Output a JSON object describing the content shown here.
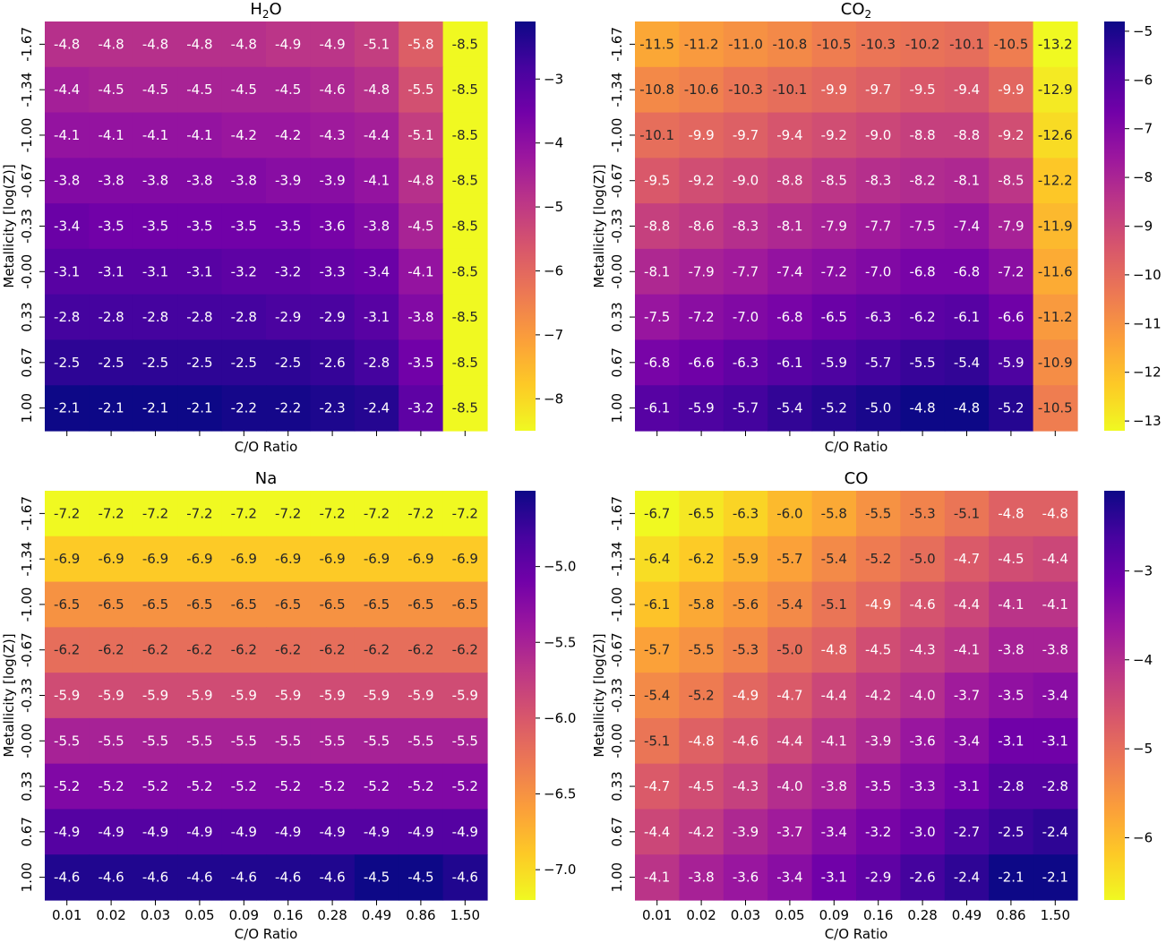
{
  "figure": {
    "shared": {
      "xlabel": "C/O Ratio",
      "ylabel": "Metallicity [log(Z)]",
      "x_ticks": [
        "0.01",
        "0.02",
        "0.03",
        "0.05",
        "0.09",
        "0.16",
        "0.28",
        "0.49",
        "0.86",
        "1.50"
      ],
      "y_ticks": [
        "-1.67",
        "-1.34",
        "-1.00",
        "-0.67",
        "-0.33",
        "-0.00",
        "0.33",
        "0.67",
        "1.00"
      ],
      "colormap": "plasma (reversed)",
      "colormap_stops": [
        "#0d0887",
        "#46039f",
        "#7201a8",
        "#9c179e",
        "#bd3786",
        "#d8576b",
        "#ed7953",
        "#fb9f3a",
        "#fdca26",
        "#f0f921"
      ]
    }
  },
  "chart_data": [
    {
      "type": "heatmap",
      "title": "H2O",
      "title_main": "H",
      "title_sub": "2",
      "title_tail": "O",
      "xlabel": "C/O Ratio",
      "ylabel": "Metallicity [log(Z)]",
      "show_x_ticklabels": false,
      "show_xlabel": true,
      "show_ylabel": true,
      "color_range": [
        -8.5,
        -2.1
      ],
      "colorbar_ticks": [
        -3,
        -4,
        -5,
        -6,
        -7,
        -8
      ],
      "colorbar_labels": [
        "−3",
        "−4",
        "−5",
        "−6",
        "−7",
        "−8"
      ],
      "values": [
        [
          -4.8,
          -4.8,
          -4.8,
          -4.8,
          -4.8,
          -4.9,
          -4.9,
          -5.1,
          -5.8,
          -8.5
        ],
        [
          -4.4,
          -4.5,
          -4.5,
          -4.5,
          -4.5,
          -4.5,
          -4.6,
          -4.8,
          -5.5,
          -8.5
        ],
        [
          -4.1,
          -4.1,
          -4.1,
          -4.1,
          -4.2,
          -4.2,
          -4.3,
          -4.4,
          -5.1,
          -8.5
        ],
        [
          -3.8,
          -3.8,
          -3.8,
          -3.8,
          -3.8,
          -3.9,
          -3.9,
          -4.1,
          -4.8,
          -8.5
        ],
        [
          -3.4,
          -3.5,
          -3.5,
          -3.5,
          -3.5,
          -3.5,
          -3.6,
          -3.8,
          -4.5,
          -8.5
        ],
        [
          -3.1,
          -3.1,
          -3.1,
          -3.1,
          -3.2,
          -3.2,
          -3.3,
          -3.4,
          -4.1,
          -8.5
        ],
        [
          -2.8,
          -2.8,
          -2.8,
          -2.8,
          -2.8,
          -2.9,
          -2.9,
          -3.1,
          -3.8,
          -8.5
        ],
        [
          -2.5,
          -2.5,
          -2.5,
          -2.5,
          -2.5,
          -2.5,
          -2.6,
          -2.8,
          -3.5,
          -8.5
        ],
        [
          -2.1,
          -2.1,
          -2.1,
          -2.1,
          -2.2,
          -2.2,
          -2.3,
          -2.4,
          -3.2,
          -8.5
        ]
      ]
    },
    {
      "type": "heatmap",
      "title": "CO2",
      "title_main": "CO",
      "title_sub": "2",
      "title_tail": "",
      "xlabel": "C/O Ratio",
      "ylabel": "Metallicity [log(Z)]",
      "show_x_ticklabels": false,
      "show_xlabel": true,
      "show_ylabel": true,
      "color_range": [
        -13.2,
        -4.8
      ],
      "colorbar_ticks": [
        -5,
        -6,
        -7,
        -8,
        -9,
        -10,
        -11,
        -12,
        -13
      ],
      "colorbar_labels": [
        "−5",
        "−6",
        "−7",
        "−8",
        "−9",
        "−10",
        "−11",
        "−12",
        "−13"
      ],
      "values": [
        [
          -11.5,
          -11.2,
          -11.0,
          -10.8,
          -10.5,
          -10.3,
          -10.2,
          -10.1,
          -10.5,
          -13.2
        ],
        [
          -10.8,
          -10.6,
          -10.3,
          -10.1,
          -9.9,
          -9.7,
          -9.5,
          -9.4,
          -9.9,
          -12.9
        ],
        [
          -10.1,
          -9.9,
          -9.7,
          -9.4,
          -9.2,
          -9.0,
          -8.8,
          -8.8,
          -9.2,
          -12.6
        ],
        [
          -9.5,
          -9.2,
          -9.0,
          -8.8,
          -8.5,
          -8.3,
          -8.2,
          -8.1,
          -8.5,
          -12.2
        ],
        [
          -8.8,
          -8.6,
          -8.3,
          -8.1,
          -7.9,
          -7.7,
          -7.5,
          -7.4,
          -7.9,
          -11.9
        ],
        [
          -8.1,
          -7.9,
          -7.7,
          -7.4,
          -7.2,
          -7.0,
          -6.8,
          -6.8,
          -7.2,
          -11.6
        ],
        [
          -7.5,
          -7.2,
          -7.0,
          -6.8,
          -6.5,
          -6.3,
          -6.2,
          -6.1,
          -6.6,
          -11.2
        ],
        [
          -6.8,
          -6.6,
          -6.3,
          -6.1,
          -5.9,
          -5.7,
          -5.5,
          -5.4,
          -5.9,
          -10.9
        ],
        [
          -6.1,
          -5.9,
          -5.7,
          -5.4,
          -5.2,
          -5.0,
          -4.8,
          -4.8,
          -5.2,
          -10.5
        ]
      ]
    },
    {
      "type": "heatmap",
      "title": "Na",
      "title_main": "Na",
      "title_sub": "",
      "title_tail": "",
      "xlabel": "C/O Ratio",
      "ylabel": "Metallicity [log(Z)]",
      "show_x_ticklabels": true,
      "show_xlabel": true,
      "show_ylabel": true,
      "color_range": [
        -7.2,
        -4.5
      ],
      "colorbar_ticks": [
        -5.0,
        -5.5,
        -6.0,
        -6.5,
        -7.0
      ],
      "colorbar_labels": [
        "−5.0",
        "−5.5",
        "−6.0",
        "−6.5",
        "−7.0"
      ],
      "values": [
        [
          -7.2,
          -7.2,
          -7.2,
          -7.2,
          -7.2,
          -7.2,
          -7.2,
          -7.2,
          -7.2,
          -7.2
        ],
        [
          -6.9,
          -6.9,
          -6.9,
          -6.9,
          -6.9,
          -6.9,
          -6.9,
          -6.9,
          -6.9,
          -6.9
        ],
        [
          -6.5,
          -6.5,
          -6.5,
          -6.5,
          -6.5,
          -6.5,
          -6.5,
          -6.5,
          -6.5,
          -6.5
        ],
        [
          -6.2,
          -6.2,
          -6.2,
          -6.2,
          -6.2,
          -6.2,
          -6.2,
          -6.2,
          -6.2,
          -6.2
        ],
        [
          -5.9,
          -5.9,
          -5.9,
          -5.9,
          -5.9,
          -5.9,
          -5.9,
          -5.9,
          -5.9,
          -5.9
        ],
        [
          -5.5,
          -5.5,
          -5.5,
          -5.5,
          -5.5,
          -5.5,
          -5.5,
          -5.5,
          -5.5,
          -5.5
        ],
        [
          -5.2,
          -5.2,
          -5.2,
          -5.2,
          -5.2,
          -5.2,
          -5.2,
          -5.2,
          -5.2,
          -5.2
        ],
        [
          -4.9,
          -4.9,
          -4.9,
          -4.9,
          -4.9,
          -4.9,
          -4.9,
          -4.9,
          -4.9,
          -4.9
        ],
        [
          -4.6,
          -4.6,
          -4.6,
          -4.6,
          -4.6,
          -4.6,
          -4.6,
          -4.5,
          -4.5,
          -4.6
        ]
      ]
    },
    {
      "type": "heatmap",
      "title": "CO",
      "title_main": "CO",
      "title_sub": "",
      "title_tail": "",
      "xlabel": "C/O Ratio",
      "ylabel": "Metallicity [log(Z)]",
      "show_x_ticklabels": true,
      "show_xlabel": true,
      "show_ylabel": true,
      "color_range": [
        -6.7,
        -2.1
      ],
      "colorbar_ticks": [
        -3,
        -4,
        -5,
        -6
      ],
      "colorbar_labels": [
        "−3",
        "−4",
        "−5",
        "−6"
      ],
      "values": [
        [
          -6.7,
          -6.5,
          -6.3,
          -6.0,
          -5.8,
          -5.5,
          -5.3,
          -5.1,
          -4.8,
          -4.8
        ],
        [
          -6.4,
          -6.2,
          -5.9,
          -5.7,
          -5.4,
          -5.2,
          -5.0,
          -4.7,
          -4.5,
          -4.4
        ],
        [
          -6.1,
          -5.8,
          -5.6,
          -5.4,
          -5.1,
          -4.9,
          -4.6,
          -4.4,
          -4.1,
          -4.1
        ],
        [
          -5.7,
          -5.5,
          -5.3,
          -5.0,
          -4.8,
          -4.5,
          -4.3,
          -4.1,
          -3.8,
          -3.8
        ],
        [
          -5.4,
          -5.2,
          -4.9,
          -4.7,
          -4.4,
          -4.2,
          -4.0,
          -3.7,
          -3.5,
          -3.4
        ],
        [
          -5.1,
          -4.8,
          -4.6,
          -4.4,
          -4.1,
          -3.9,
          -3.6,
          -3.4,
          -3.1,
          -3.1
        ],
        [
          -4.7,
          -4.5,
          -4.3,
          -4.0,
          -3.8,
          -3.5,
          -3.3,
          -3.1,
          -2.8,
          -2.8
        ],
        [
          -4.4,
          -4.2,
          -3.9,
          -3.7,
          -3.4,
          -3.2,
          -3.0,
          -2.7,
          -2.5,
          -2.4
        ],
        [
          -4.1,
          -3.8,
          -3.6,
          -3.4,
          -3.1,
          -2.9,
          -2.6,
          -2.4,
          -2.1,
          -2.1
        ]
      ]
    }
  ]
}
